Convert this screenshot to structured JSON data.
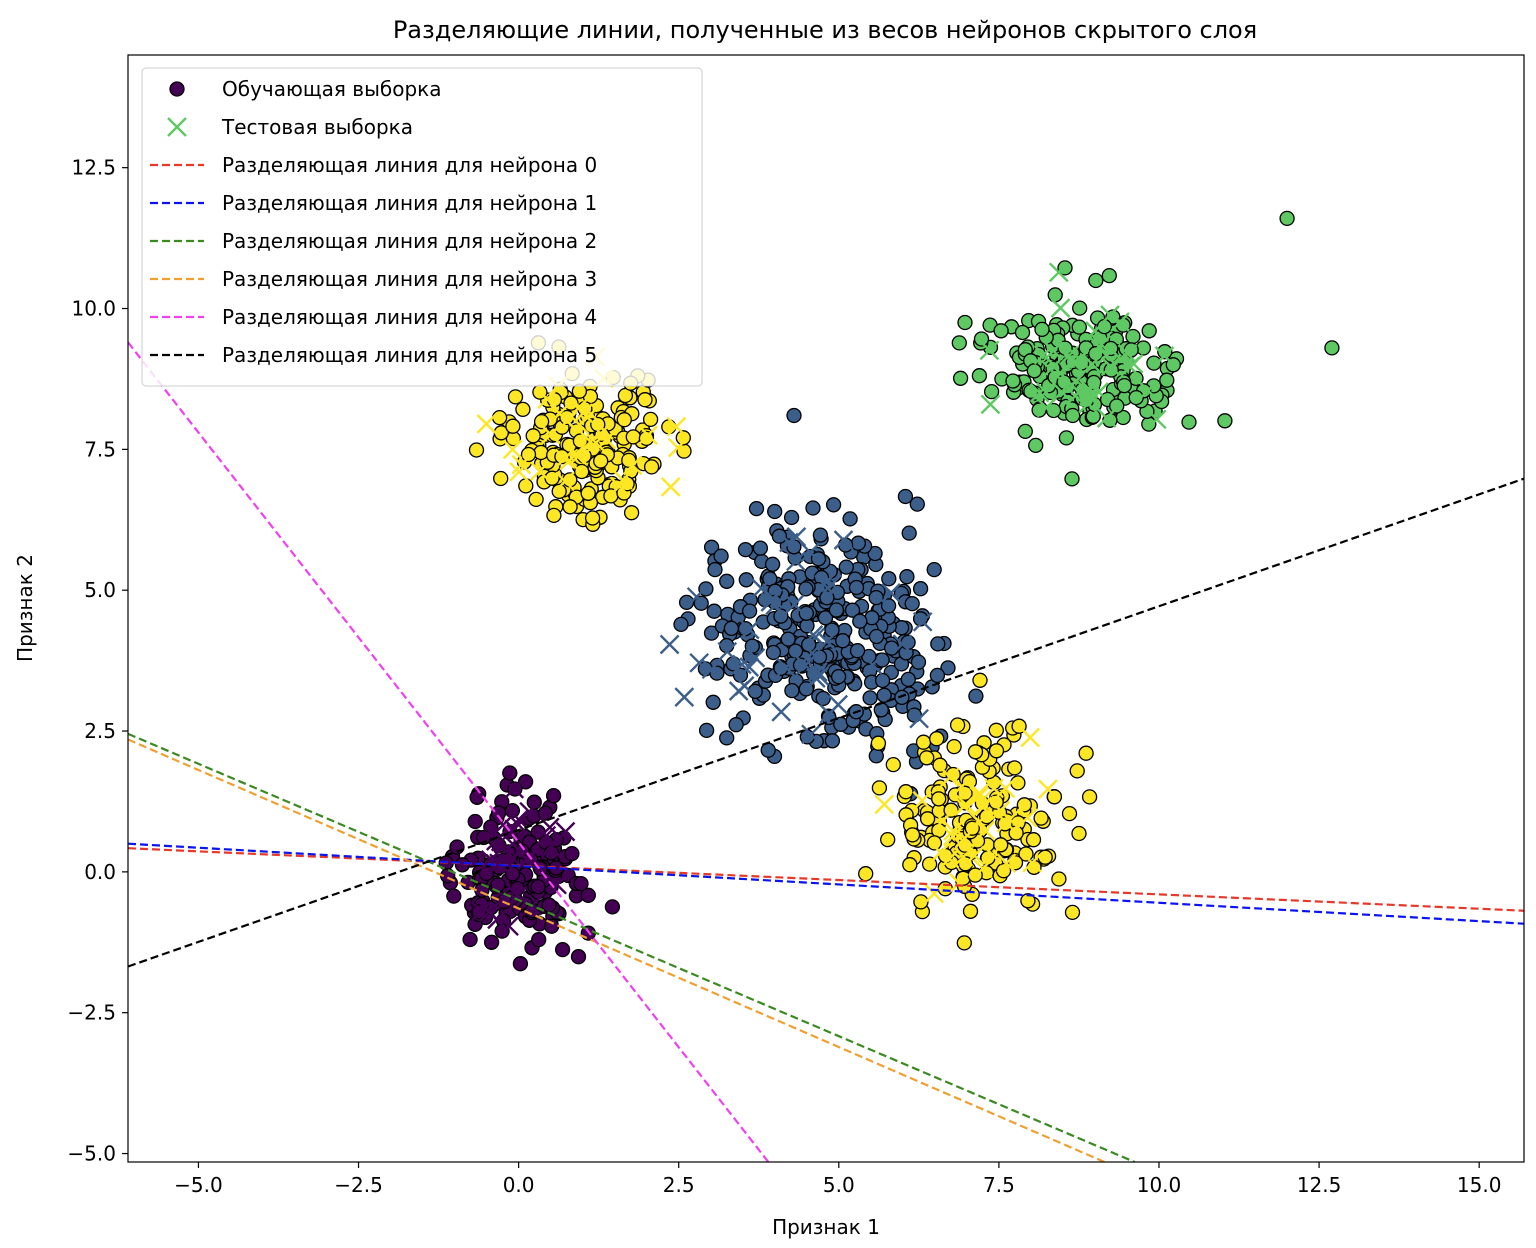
{
  "chart_data": {
    "type": "scatter",
    "title": "Разделяющие линии, полученные из весов нейронов скрытого слоя",
    "xlabel": "Признак 1",
    "ylabel": "Признак 2",
    "xlim": [
      -6.1,
      15.7
    ],
    "ylim": [
      -5.15,
      14.5
    ],
    "xticks": [
      -5.0,
      -2.5,
      0.0,
      2.5,
      5.0,
      7.5,
      10.0,
      12.5,
      15.0
    ],
    "xtick_labels": [
      "−5.0",
      "−2.5",
      "0.0",
      "2.5",
      "5.0",
      "7.5",
      "10.0",
      "12.5",
      "15.0"
    ],
    "yticks": [
      -5.0,
      -2.5,
      0.0,
      2.5,
      5.0,
      7.5,
      10.0,
      12.5
    ],
    "ytick_labels": [
      "−5.0",
      "−2.5",
      "0.0",
      "2.5",
      "5.0",
      "7.5",
      "10.0",
      "12.5"
    ],
    "grid": false,
    "legend_position": "top-left",
    "legend": {
      "train_label": "Обучающая выборка",
      "test_label": "Тестовая выборка",
      "train_color": "#440154",
      "test_color": "#5ec962"
    },
    "class_colors": [
      "#440154",
      "#3b5f8a",
      "#5ec962",
      "#fde725"
    ],
    "clusters": [
      {
        "class": 0,
        "center": [
          0.0,
          0.0
        ],
        "spread": [
          0.75,
          0.9
        ],
        "train_n": 170,
        "test_n": 28
      },
      {
        "class": 1,
        "center": [
          4.7,
          4.3
        ],
        "spread": [
          1.35,
          1.3
        ],
        "train_n": 340,
        "test_n": 42
      },
      {
        "class": 2,
        "center": [
          8.8,
          8.9
        ],
        "spread": [
          1.0,
          0.9
        ],
        "train_n": 190,
        "test_n": 40
      },
      {
        "class": 3,
        "center": [
          1.1,
          7.6
        ],
        "spread": [
          0.95,
          0.95
        ],
        "train_n": 190,
        "test_n": 32
      },
      {
        "class": 3,
        "center": [
          7.2,
          0.9
        ],
        "spread": [
          0.95,
          1.1
        ],
        "train_n": 170,
        "test_n": 34
      }
    ],
    "series": [
      {
        "name": "Разделяющая линия для нейрона 0",
        "color": "#e8382a",
        "x": [
          -6.1,
          15.7
        ],
        "y": [
          0.42,
          -0.69
        ]
      },
      {
        "name": "Разделяющая линия для нейрона 1",
        "color": "#0a14f0",
        "x": [
          -6.1,
          15.7
        ],
        "y": [
          0.5,
          -0.92
        ]
      },
      {
        "name": "Разделяющая линия для нейрона 2",
        "color": "#3a8a20",
        "x": [
          -6.1,
          9.62
        ],
        "y": [
          2.45,
          -5.15
        ]
      },
      {
        "name": "Разделяющая линия для нейрона 3",
        "color": "#f0a030",
        "x": [
          -6.1,
          9.15
        ],
        "y": [
          2.35,
          -5.15
        ]
      },
      {
        "name": "Разделяющая линия для нейрона 4",
        "color": "#f040f0",
        "x": [
          -6.1,
          3.9
        ],
        "y": [
          9.4,
          -5.15
        ]
      },
      {
        "name": "Разделяющая линия для нейрона 5",
        "color": "#000000",
        "x": [
          -6.1,
          15.7
        ],
        "y": [
          -1.68,
          6.98
        ]
      }
    ]
  }
}
